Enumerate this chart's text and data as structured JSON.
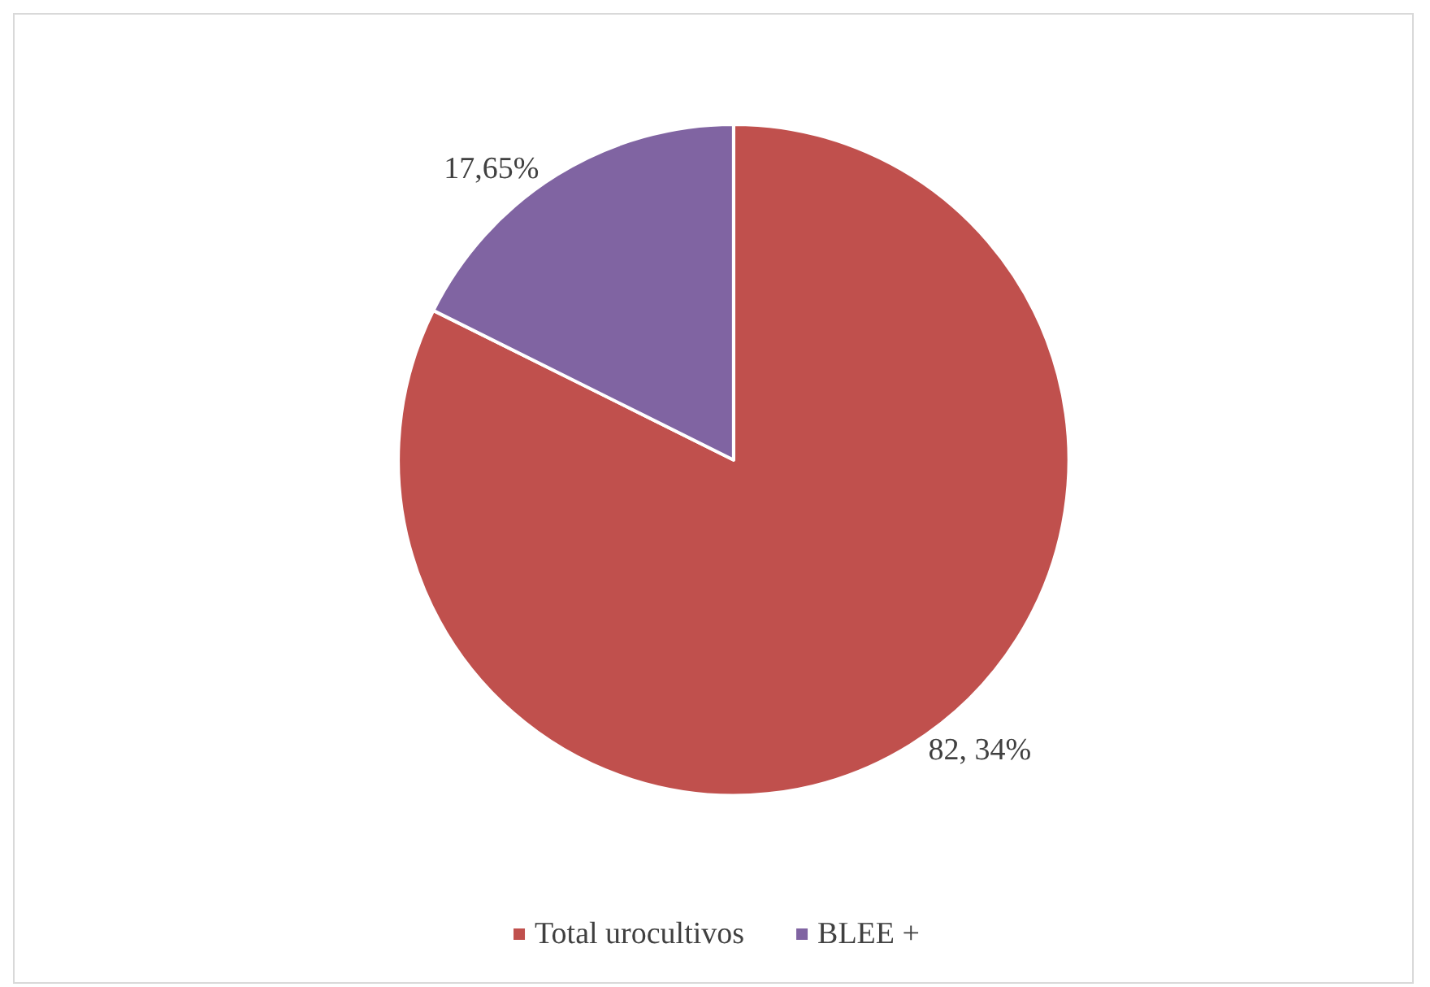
{
  "chart_data": {
    "type": "pie",
    "categories": [
      "Total urocultivos",
      "BLEE +"
    ],
    "values": [
      82.34,
      17.65
    ],
    "colors": [
      "#c0504d",
      "#8064a2"
    ],
    "value_labels": [
      "82, 34%",
      "17,65%"
    ],
    "legend": "bottom"
  }
}
